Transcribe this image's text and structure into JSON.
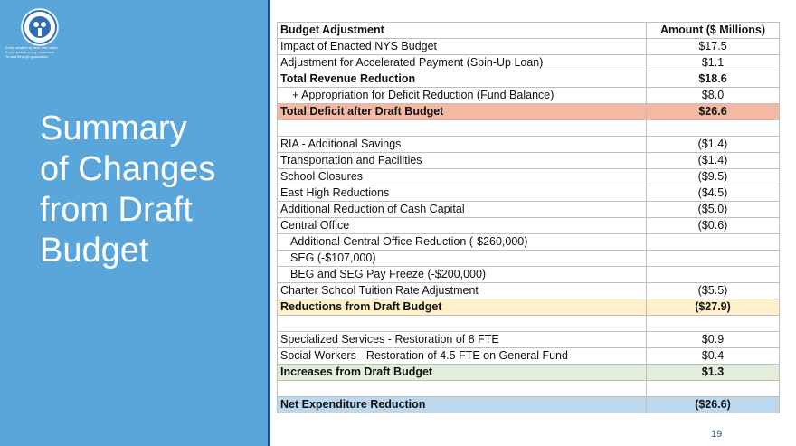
{
  "sidebar": {
    "tagline": [
      "Every student by face and name.",
      "Every school, every classroom.",
      "To and through graduation."
    ],
    "title_lines": [
      "Summary",
      "of Changes",
      "from Draft",
      "Budget"
    ]
  },
  "table": {
    "header": {
      "label": "Budget Adjustment",
      "amount": "Amount ($ Millions)"
    },
    "rows": [
      {
        "label": "Impact of Enacted NYS Budget",
        "amount": "$17.5",
        "style": "normal"
      },
      {
        "label": "Adjustment for Accelerated Payment (Spin-Up Loan)",
        "amount": "$1.1",
        "style": "normal"
      },
      {
        "label": "Total Revenue Reduction",
        "amount": "$18.6",
        "style": "bold"
      },
      {
        "label": "+ Appropriation for Deficit Reduction (Fund Balance)",
        "amount": "$8.0",
        "style": "indent1"
      },
      {
        "label": "Total Deficit after Draft Budget",
        "amount": "$26.6",
        "style": "salmon"
      },
      {
        "label": "",
        "amount": "",
        "style": "normal"
      },
      {
        "label": "RIA - Additional Savings",
        "amount": "($1.4)",
        "style": "normal"
      },
      {
        "label": "Transportation and Facilities",
        "amount": "($1.4)",
        "style": "normal"
      },
      {
        "label": "School Closures",
        "amount": "($9.5)",
        "style": "normal"
      },
      {
        "label": "East High Reductions",
        "amount": "($4.5)",
        "style": "normal"
      },
      {
        "label": "Additional Reduction of Cash Capital",
        "amount": "($5.0)",
        "style": "normal"
      },
      {
        "label": "Central Office",
        "amount": "($0.6)",
        "style": "normal"
      },
      {
        "label": "Additional Central Office Reduction (-$260,000)",
        "amount": "",
        "style": "indent2"
      },
      {
        "label": "SEG (-$107,000)",
        "amount": "",
        "style": "indent2"
      },
      {
        "label": "BEG and SEG Pay Freeze (-$200,000)",
        "amount": "",
        "style": "indent2"
      },
      {
        "label": "Charter School Tuition Rate Adjustment",
        "amount": "($5.5)",
        "style": "normal"
      },
      {
        "label": "Reductions from Draft Budget",
        "amount": "($27.9)",
        "style": "yellow"
      },
      {
        "label": "",
        "amount": "",
        "style": "normal"
      },
      {
        "label": "Specialized Services - Restoration of 8 FTE",
        "amount": "$0.9",
        "style": "normal"
      },
      {
        "label": "Social Workers - Restoration of 4.5 FTE on General Fund",
        "amount": "$0.4",
        "style": "normal"
      },
      {
        "label": "Increases from Draft Budget",
        "amount": "$1.3",
        "style": "green"
      },
      {
        "label": "",
        "amount": "",
        "style": "normal"
      },
      {
        "label": "Net Expenditure Reduction",
        "amount": "($26.6)",
        "style": "blue"
      }
    ]
  },
  "footer": {
    "page_number": "19"
  },
  "colors": {
    "sidebar": "#5aa6da",
    "divider": "#1f4f86",
    "salmon": "#f4b8a3",
    "yellow": "#fff0c9",
    "green": "#e1eed9",
    "blue": "#bcd8ee"
  }
}
